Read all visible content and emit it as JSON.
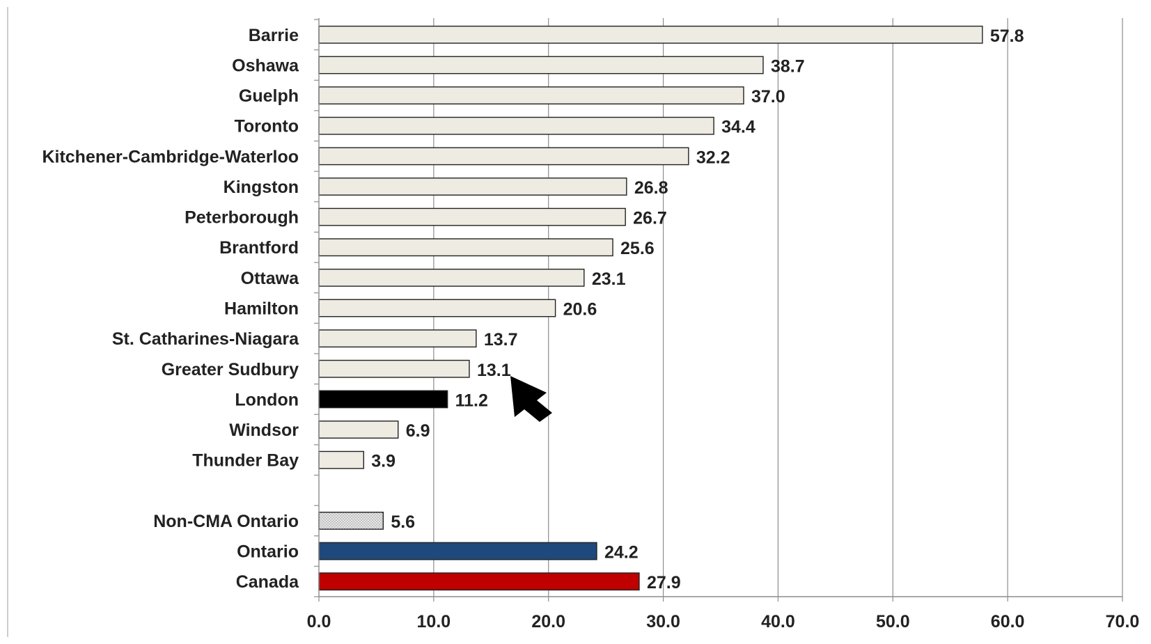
{
  "chart_data": {
    "type": "bar",
    "orientation": "horizontal",
    "title": "",
    "xlabel": "",
    "ylabel": "",
    "xlim": [
      0,
      70
    ],
    "x_ticks": [
      "0.0",
      "10.0",
      "20.0",
      "30.0",
      "40.0",
      "50.0",
      "60.0",
      "70.0"
    ],
    "grid": "vertical",
    "legend": "none",
    "categories": [
      "Barrie",
      "Oshawa",
      "Guelph",
      "Toronto",
      "Kitchener-Cambridge-Waterloo",
      "Kingston",
      "Peterborough",
      "Brantford",
      "Ottawa",
      "Hamilton",
      "St. Catharines-Niagara",
      "Greater Sudbury",
      "London",
      "Windsor",
      "Thunder Bay",
      "",
      "Non-CMA Ontario",
      "Ontario",
      "Canada"
    ],
    "values": [
      57.8,
      38.7,
      37.0,
      34.4,
      32.2,
      26.8,
      26.7,
      25.6,
      23.1,
      20.6,
      13.7,
      13.1,
      11.2,
      6.9,
      3.9,
      null,
      5.6,
      24.2,
      27.9
    ],
    "value_labels": [
      "57.8",
      "38.7",
      "37.0",
      "34.4",
      "32.2",
      "26.8",
      "26.7",
      "25.6",
      "23.1",
      "20.6",
      "13.7",
      "13.1",
      "11.2",
      "6.9",
      "3.9",
      "",
      "5.6",
      "24.2",
      "27.9"
    ],
    "bar_colors": [
      "#eeebe2",
      "#eeebe2",
      "#eeebe2",
      "#eeebe2",
      "#eeebe2",
      "#eeebe2",
      "#eeebe2",
      "#eeebe2",
      "#eeebe2",
      "#eeebe2",
      "#eeebe2",
      "#eeebe2",
      "#000000",
      "#eeebe2",
      "#eeebe2",
      "",
      "#d6d6d6",
      "#1f497d",
      "#c00000"
    ],
    "annotation": {
      "type": "arrow",
      "points_to": "London"
    }
  }
}
